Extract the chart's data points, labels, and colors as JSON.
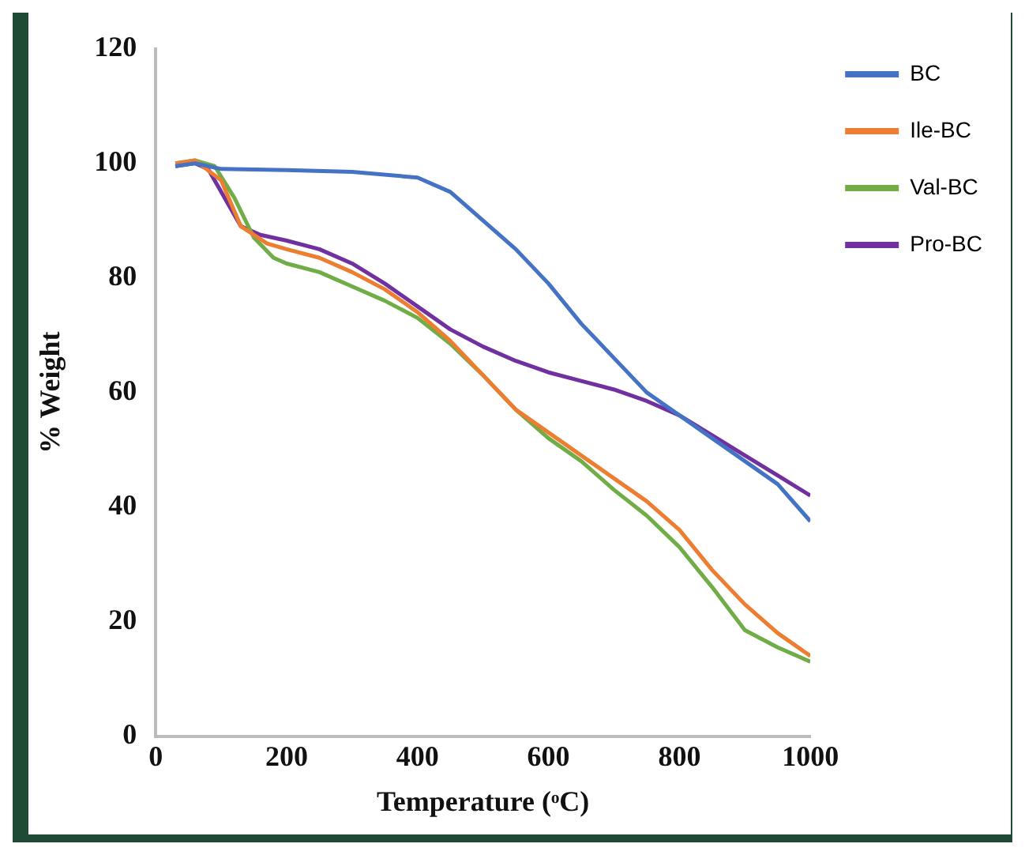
{
  "chart_data": {
    "type": "line",
    "xlabel": "Temperature (ᵒC)",
    "ylabel": "% Weight",
    "xlim": [
      0,
      1000
    ],
    "xticks": [
      0,
      200,
      400,
      600,
      800,
      1000
    ],
    "ylim": [
      0,
      120
    ],
    "yticks": [
      0,
      20,
      40,
      60,
      80,
      100,
      120
    ],
    "grid": false,
    "legend": "top right",
    "marker": "none",
    "line_style": "solid",
    "series": [
      {
        "name": "BC",
        "color": "#4472c4",
        "x": [
          30,
          60,
          100,
          200,
          300,
          400,
          450,
          500,
          550,
          600,
          650,
          700,
          750,
          800,
          850,
          900,
          950,
          1000
        ],
        "values": [
          99.5,
          100,
          99,
          98.8,
          98.5,
          97.5,
          95,
          90,
          85,
          79,
          72,
          66,
          60,
          56,
          52,
          48,
          44,
          37.5
        ]
      },
      {
        "name": "Ile-BC",
        "color": "#ed7d31",
        "x": [
          30,
          60,
          100,
          130,
          170,
          200,
          250,
          300,
          350,
          400,
          450,
          500,
          550,
          600,
          650,
          700,
          750,
          800,
          850,
          900,
          950,
          1000
        ],
        "values": [
          100,
          100.5,
          97,
          89,
          86,
          85,
          83.5,
          81,
          78,
          74,
          69,
          63,
          57,
          53,
          49,
          45,
          41,
          36,
          29,
          23,
          18,
          14
        ]
      },
      {
        "name": "Val-BC",
        "color": "#70ad47",
        "x": [
          30,
          60,
          90,
          120,
          150,
          180,
          200,
          250,
          300,
          350,
          400,
          450,
          500,
          550,
          600,
          650,
          700,
          750,
          800,
          850,
          900,
          950,
          1000
        ],
        "values": [
          100,
          100.5,
          99.5,
          94,
          87,
          83.5,
          82.5,
          81,
          78.5,
          76,
          73,
          68.5,
          63,
          57,
          52,
          48,
          43,
          38.5,
          33,
          26,
          18.5,
          15.5,
          13
        ]
      },
      {
        "name": "Pro-BC",
        "color": "#7030a0",
        "x": [
          30,
          60,
          80,
          100,
          130,
          160,
          200,
          250,
          300,
          350,
          400,
          450,
          500,
          550,
          600,
          650,
          700,
          750,
          800,
          850,
          900,
          950,
          1000
        ],
        "values": [
          99.5,
          100,
          99,
          95,
          89,
          87.5,
          86.5,
          85,
          82.5,
          79,
          75,
          71,
          68,
          65.5,
          63.5,
          62,
          60.5,
          58.5,
          56,
          52.5,
          49,
          45.5,
          42
        ]
      }
    ]
  }
}
